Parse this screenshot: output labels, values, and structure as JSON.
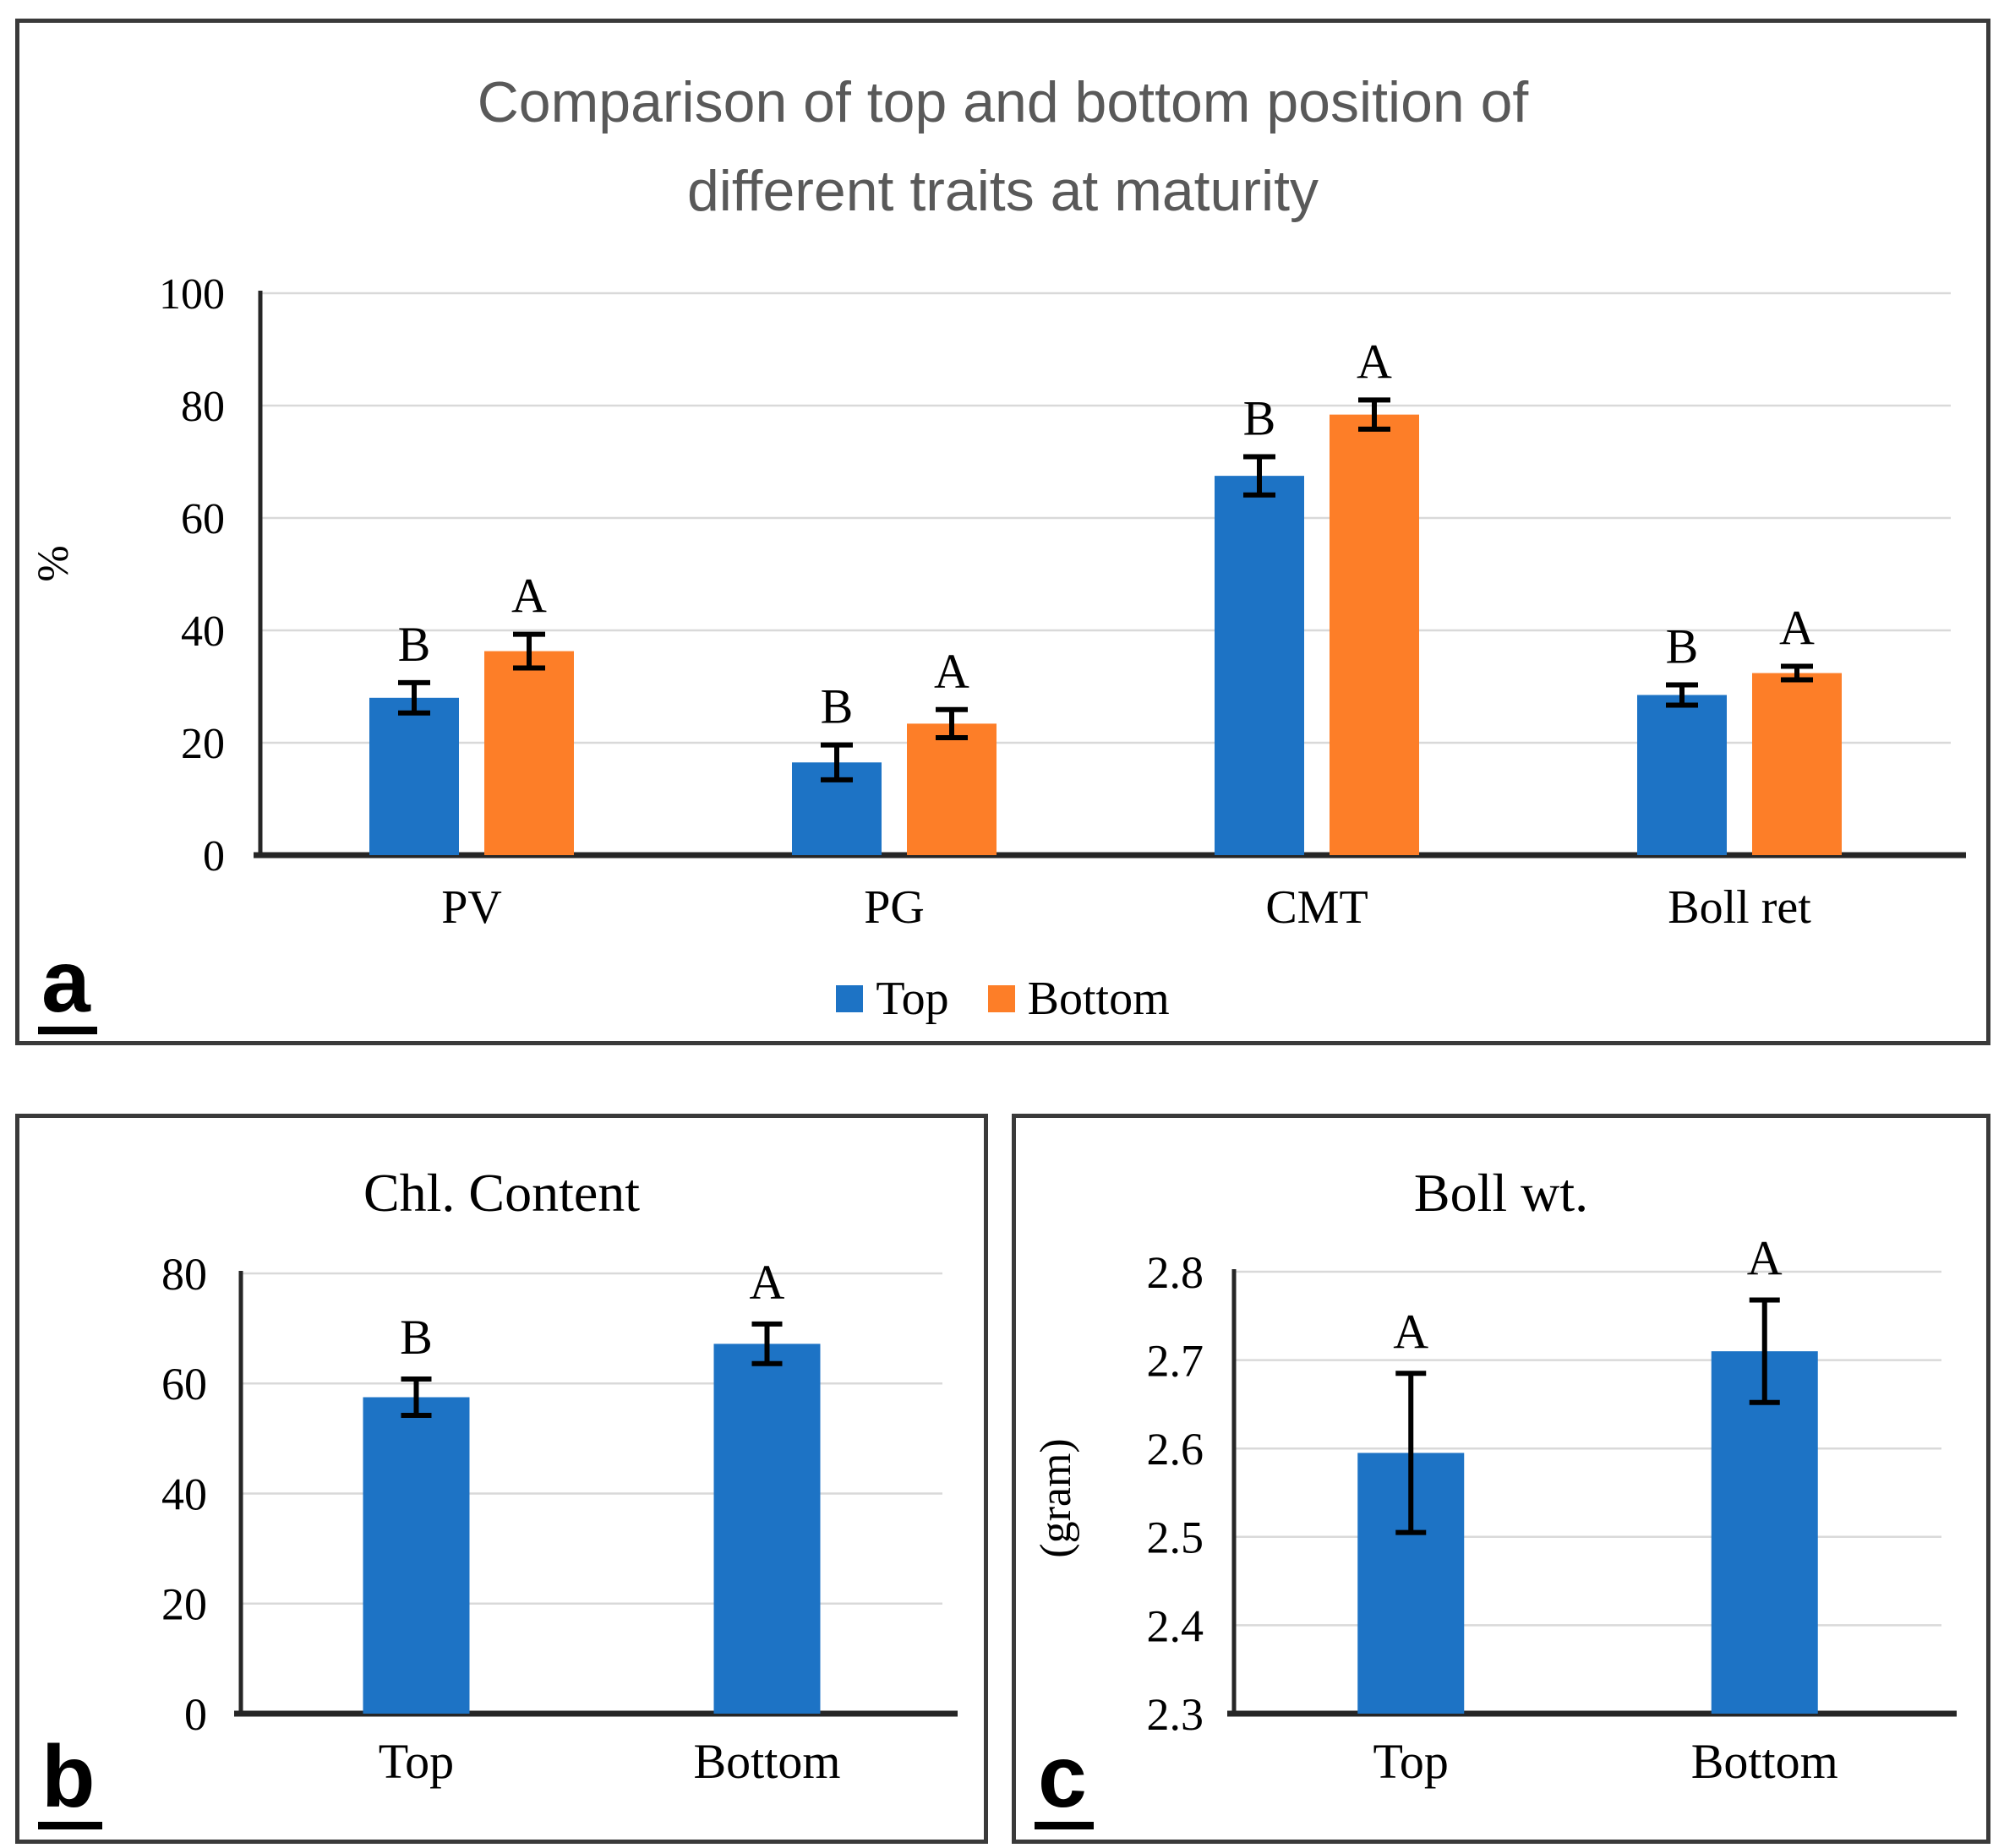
{
  "figure": {
    "panels": [
      {
        "id": "a",
        "letter": "a"
      },
      {
        "id": "b",
        "letter": "b"
      },
      {
        "id": "c",
        "letter": "c"
      }
    ],
    "colors": {
      "top_series": "#1d73c5",
      "bottom_series": "#fd7e28",
      "title_gray": "#595959",
      "gridline": "#d9d9d9",
      "axis": "#262626",
      "panel_border": "#3a3a3a"
    }
  },
  "chart_data": [
    {
      "panel": "a",
      "type": "bar",
      "title": "Comparison of top and bottom position of different traits at maturity",
      "title_lines": [
        "Comparison of top and bottom position of",
        "different traits at maturity"
      ],
      "categories": [
        "PV",
        "PG",
        "CMT",
        "Boll ret"
      ],
      "series": [
        {
          "name": "Top",
          "color": "#1d73c5",
          "values": [
            28,
            16.5,
            67.5,
            28.5
          ],
          "errors": [
            2.7,
            3.1,
            3.4,
            1.8
          ],
          "letters": [
            "B",
            "B",
            "B",
            "B"
          ]
        },
        {
          "name": "Bottom",
          "color": "#fd7e28",
          "values": [
            36.3,
            23.4,
            78.4,
            32.4
          ],
          "errors": [
            3.0,
            2.5,
            2.6,
            1.2
          ],
          "letters": [
            "A",
            "A",
            "A",
            "A"
          ]
        }
      ],
      "xlabel": "",
      "ylabel": "%",
      "ylim": [
        0,
        100
      ],
      "yticks": [
        "0",
        "20",
        "40",
        "60",
        "80",
        "100"
      ],
      "grid": true,
      "legend_position": "bottom"
    },
    {
      "panel": "b",
      "type": "bar",
      "title": "Chl. Content",
      "title_lines": [
        "Chl. Content"
      ],
      "categories": [
        "Top",
        "Bottom"
      ],
      "series": [
        {
          "name": "Chl. Content",
          "color": "#1d73c5",
          "values": [
            57.5,
            67.2
          ],
          "errors": [
            3.3,
            3.6
          ],
          "letters": [
            "B",
            "A"
          ]
        }
      ],
      "xlabel": "",
      "ylabel": "",
      "ylim": [
        0,
        80
      ],
      "yticks": [
        "0",
        "20",
        "40",
        "60",
        "80"
      ],
      "grid": true,
      "legend_position": "none"
    },
    {
      "panel": "c",
      "type": "bar",
      "title": "Boll wt.",
      "title_lines": [
        "Boll wt."
      ],
      "categories": [
        "Top",
        "Bottom"
      ],
      "series": [
        {
          "name": "Boll wt.",
          "color": "#1d73c5",
          "values": [
            2.595,
            2.71
          ],
          "errors": [
            0.09,
            0.058
          ],
          "letters": [
            "A",
            "A"
          ]
        }
      ],
      "xlabel": "",
      "ylabel": "(gram)",
      "ylim": [
        2.3,
        2.8
      ],
      "yticks": [
        "2.3",
        "2.4",
        "2.5",
        "2.6",
        "2.7",
        "2.8"
      ],
      "grid": true,
      "legend_position": "none"
    }
  ]
}
